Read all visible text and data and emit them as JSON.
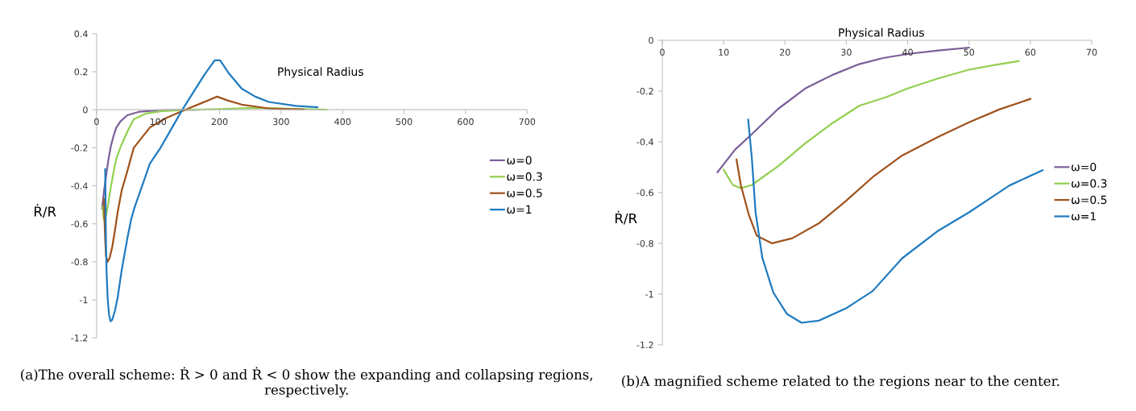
{
  "chart_data": [
    {
      "type": "line",
      "xlabel": "Physical Radius",
      "ylabel": "Ṙ/R",
      "xlim": [
        0,
        700
      ],
      "ylim": [
        -1.2,
        0.4
      ],
      "xticks": [
        0,
        100,
        200,
        300,
        400,
        500,
        600,
        700
      ],
      "yticks": [
        0.4,
        0.2,
        0,
        -0.2,
        -0.4,
        -0.6,
        -0.8,
        -1,
        -1.2
      ],
      "grid": false,
      "legend": "right",
      "marker": "none",
      "line_style": "solid",
      "annotations": [
        "(a)The overall scheme: Ṙ > 0 and Ṙ < 0 show the expanding and collapsing regions, respectively."
      ],
      "series": [
        {
          "name": "ω=0",
          "color": "#7a5f99",
          "x": [
            9,
            12,
            14.6,
            18.9,
            23.3,
            27.7,
            32.1,
            39.1,
            50,
            70,
            100,
            130,
            166
          ],
          "values": [
            -0.52,
            -0.43,
            -0.37,
            -0.27,
            -0.19,
            -0.137,
            -0.094,
            -0.06,
            -0.029,
            -0.01,
            -0.003,
            -0.001,
            0
          ]
        },
        {
          "name": "ω=0.3",
          "color": "#92d050",
          "x": [
            10,
            11.5,
            12.8,
            14.6,
            18.9,
            23.3,
            27.7,
            32.1,
            39.1,
            50,
            60.5,
            80,
            104,
            148,
            201,
            258,
            324,
            374
          ],
          "values": [
            -0.51,
            -0.57,
            -0.583,
            -0.57,
            -0.496,
            -0.406,
            -0.327,
            -0.258,
            -0.195,
            -0.116,
            -0.05,
            -0.02,
            -0.008,
            0,
            0.003,
            0.01,
            0.004,
            0
          ]
        },
        {
          "name": "ω=0.5",
          "color": "#a0521c",
          "x": [
            12.1,
            12.8,
            14.1,
            15.4,
            17.9,
            21.2,
            25.6,
            29.9,
            34.3,
            40.9,
            50,
            60.5,
            86.8,
            113,
            144,
            170,
            196,
            214,
            236,
            280,
            337
          ],
          "values": [
            -0.47,
            -0.57,
            -0.687,
            -0.77,
            -0.8,
            -0.78,
            -0.72,
            -0.634,
            -0.539,
            -0.424,
            -0.323,
            -0.2,
            -0.093,
            -0.044,
            0,
            0.034,
            0.069,
            0.048,
            0.027,
            0.007,
            0.001
          ]
        },
        {
          "name": "ω=1",
          "color": "#1f7bc0",
          "x": [
            14,
            14.6,
            15.2,
            16.3,
            18.1,
            20.3,
            22.7,
            25.5,
            29.9,
            34.3,
            40.9,
            50,
            56.6,
            62,
            86.8,
            104,
            139.5,
            174.6,
            192,
            201,
            214,
            236,
            258,
            280,
            324,
            359
          ],
          "values": [
            -0.313,
            -0.465,
            -0.676,
            -0.856,
            -0.994,
            -1.078,
            -1.113,
            -1.105,
            -1.057,
            -0.988,
            -0.843,
            -0.678,
            -0.572,
            -0.512,
            -0.283,
            -0.2,
            0,
            0.18,
            0.26,
            0.26,
            0.196,
            0.111,
            0.069,
            0.041,
            0.02,
            0.013
          ]
        }
      ]
    },
    {
      "type": "line",
      "xlabel": "Physical Radius",
      "ylabel": "Ṙ/R",
      "xlim": [
        0,
        70
      ],
      "ylim": [
        -1.2,
        0
      ],
      "xticks": [
        0,
        10,
        20,
        30,
        40,
        50,
        60,
        70
      ],
      "yticks": [
        0,
        -0.2,
        -0.4,
        -0.6,
        -0.8,
        -1,
        -1.2
      ],
      "grid": false,
      "legend": "right",
      "marker": "none",
      "line_style": "solid",
      "annotations": [
        "(b)A magnified scheme related to the regions near to the center."
      ],
      "series": [
        {
          "name": "ω=0",
          "color": "#7a5f99",
          "x": [
            9,
            11.9,
            14.6,
            18.9,
            23.3,
            27.7,
            32.1,
            36,
            40,
            45,
            50
          ],
          "values": [
            -0.52,
            -0.43,
            -0.37,
            -0.27,
            -0.19,
            -0.137,
            -0.094,
            -0.07,
            -0.054,
            -0.04,
            -0.029
          ]
        },
        {
          "name": "ω=0.3",
          "color": "#92d050",
          "x": [
            10,
            11.5,
            12.8,
            14.6,
            18.9,
            23.3,
            27.7,
            32.1,
            36.5,
            40,
            45,
            50,
            54,
            58.1
          ],
          "values": [
            -0.51,
            -0.57,
            -0.583,
            -0.57,
            -0.496,
            -0.406,
            -0.327,
            -0.258,
            -0.224,
            -0.19,
            -0.15,
            -0.116,
            -0.098,
            -0.082
          ]
        },
        {
          "name": "ω=0.5",
          "color": "#a0521c",
          "x": [
            12.1,
            12.8,
            14.1,
            15.4,
            17.9,
            21.2,
            25.6,
            29.9,
            34.3,
            39.1,
            45,
            50,
            55,
            60
          ],
          "values": [
            -0.47,
            -0.57,
            -0.687,
            -0.77,
            -0.8,
            -0.78,
            -0.72,
            -0.634,
            -0.539,
            -0.454,
            -0.38,
            -0.323,
            -0.272,
            -0.231
          ]
        },
        {
          "name": "ω=1",
          "color": "#1f7bc0",
          "x": [
            14,
            14.6,
            15.2,
            16.3,
            18.1,
            20.3,
            22.7,
            25.5,
            29.9,
            34.3,
            39.1,
            45,
            50,
            56.6,
            62
          ],
          "values": [
            -0.313,
            -0.465,
            -0.676,
            -0.856,
            -0.994,
            -1.078,
            -1.113,
            -1.105,
            -1.057,
            -0.988,
            -0.859,
            -0.75,
            -0.678,
            -0.572,
            -0.512
          ]
        }
      ]
    }
  ]
}
